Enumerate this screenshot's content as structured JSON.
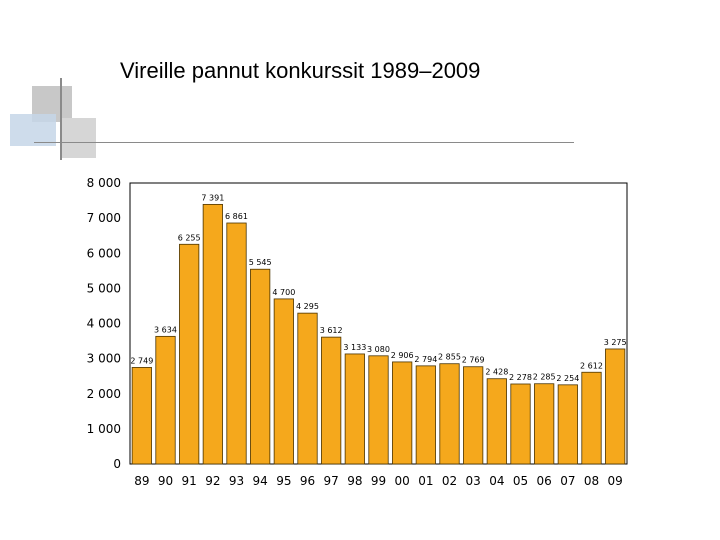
{
  "title": "Vireille pannut konkurssit 1989–2009",
  "colors": {
    "bar_fill": "#f5a81c",
    "bar_stroke": "#4a3300",
    "deco_gray": "#c8c8c8",
    "deco_blue": "#c6d6e8",
    "deco_line": "#8a8a8a"
  },
  "chart_data": {
    "type": "bar",
    "title": "Vireille pannut konkurssit 1989–2009",
    "xlabel": "",
    "ylabel": "",
    "ylim": [
      0,
      8000
    ],
    "yticks": [
      0,
      1000,
      2000,
      3000,
      4000,
      5000,
      6000,
      7000,
      8000
    ],
    "ytick_labels": [
      "0",
      "1 000",
      "2 000",
      "3 000",
      "4 000",
      "5 000",
      "6 000",
      "7 000",
      "8 000"
    ],
    "grid": false,
    "legend": "none",
    "categories": [
      "89",
      "90",
      "91",
      "92",
      "93",
      "94",
      "95",
      "96",
      "97",
      "98",
      "99",
      "00",
      "01",
      "02",
      "03",
      "04",
      "05",
      "06",
      "07",
      "08",
      "09"
    ],
    "values": [
      2749,
      3634,
      6255,
      7391,
      6861,
      5545,
      4700,
      4295,
      3612,
      3133,
      3080,
      2906,
      2794,
      2855,
      2769,
      2428,
      2278,
      2285,
      2254,
      2612,
      3275
    ],
    "value_labels": [
      "2 749",
      "3 634",
      "6 255",
      "7 391",
      "6 861",
      "5 545",
      "4 700",
      "4 295",
      "3 612",
      "3 133",
      "3 080",
      "2 906",
      "2 794",
      "2 855",
      "2 769",
      "2 428",
      "2 278",
      "2 285",
      "2 254",
      "2 612",
      "3 275"
    ]
  }
}
